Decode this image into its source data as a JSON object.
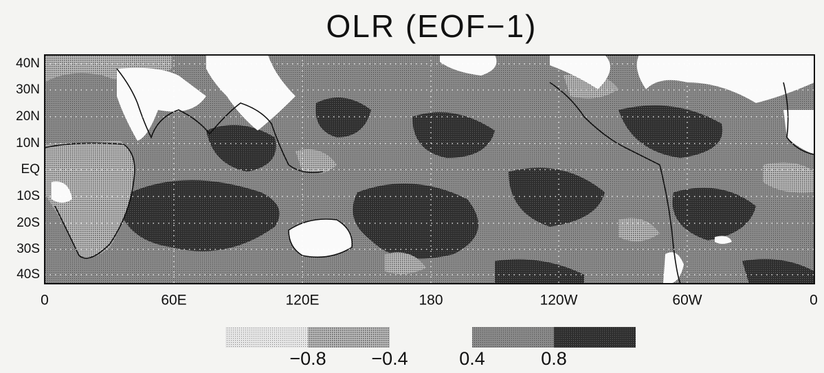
{
  "header": {
    "title": "OLR (EOF−1)"
  },
  "map": {
    "lat_labels": [
      "40N",
      "30N",
      "20N",
      "10N",
      "EQ",
      "10S",
      "20S",
      "30S",
      "40S"
    ],
    "lon_labels": [
      "0",
      "60E",
      "120E",
      "180",
      "120W",
      "60W",
      "0"
    ]
  },
  "legend": {
    "labels": [
      "−0.8",
      "−0.4",
      "0.4",
      "0.8"
    ]
  }
}
